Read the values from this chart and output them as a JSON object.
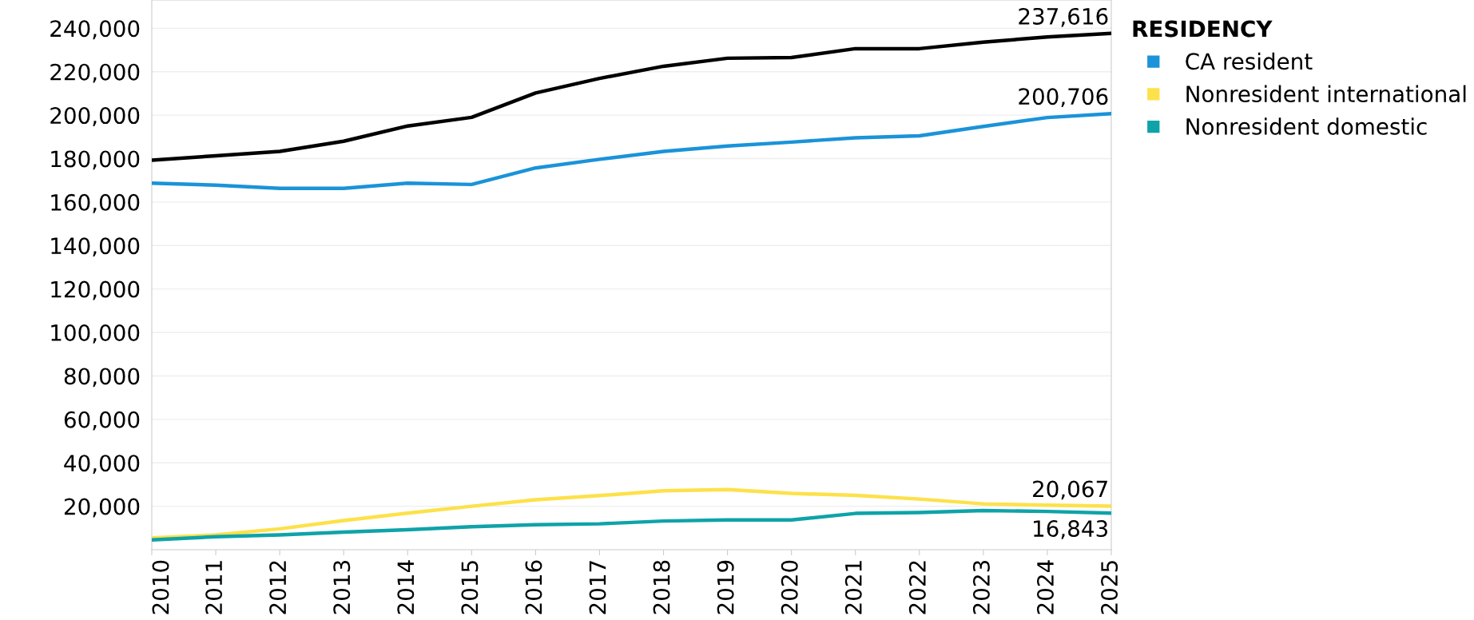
{
  "chart_data": {
    "type": "line",
    "legend_title": "RESIDENCY",
    "legend": "right",
    "grid": "y",
    "categories": [
      "2010",
      "2011",
      "2012",
      "2013",
      "2014",
      "2015",
      "2016",
      "2017",
      "2018",
      "2019",
      "2020",
      "2021",
      "2022",
      "2023",
      "2024",
      "2025"
    ],
    "ylim": [
      0,
      253000
    ],
    "yticks": [
      {
        "value": 20000,
        "label": "20,000"
      },
      {
        "value": 40000,
        "label": "40,000"
      },
      {
        "value": 60000,
        "label": "60,000"
      },
      {
        "value": 80000,
        "label": "80,000"
      },
      {
        "value": 100000,
        "label": "100,000"
      },
      {
        "value": 120000,
        "label": "120,000"
      },
      {
        "value": 140000,
        "label": "140,000"
      },
      {
        "value": 160000,
        "label": "160,000"
      },
      {
        "value": 180000,
        "label": "180,000"
      },
      {
        "value": 200000,
        "label": "200,000"
      },
      {
        "value": 220000,
        "label": "220,000"
      },
      {
        "value": 240000,
        "label": "240,000"
      }
    ],
    "series": [
      {
        "color": "#000000",
        "values": [
          179300,
          181300,
          183300,
          188000,
          195000,
          199000,
          210200,
          216900,
          222500,
          226200,
          226500,
          230600,
          230600,
          233600,
          236000,
          237616
        ],
        "value_labels": [
          null,
          null,
          null,
          null,
          null,
          null,
          null,
          null,
          null,
          null,
          null,
          null,
          null,
          null,
          null,
          "237,616"
        ]
      },
      {
        "name": "CA resident",
        "color": "#1a93d9",
        "values": [
          168700,
          167800,
          166300,
          166300,
          168700,
          168100,
          175700,
          179700,
          183300,
          185800,
          187600,
          189600,
          190500,
          194800,
          198900,
          200706
        ],
        "value_labels": [
          null,
          null,
          null,
          null,
          null,
          null,
          null,
          null,
          null,
          null,
          null,
          null,
          null,
          null,
          null,
          "200,706"
        ]
      },
      {
        "name": "Nonresident international",
        "color": "#fde14a",
        "values": [
          5400,
          6800,
          9600,
          13400,
          16800,
          20000,
          23000,
          24900,
          27100,
          27700,
          25900,
          25000,
          23300,
          21100,
          20500,
          20067
        ],
        "value_labels": [
          null,
          null,
          null,
          null,
          null,
          null,
          null,
          null,
          null,
          null,
          null,
          null,
          null,
          null,
          null,
          "20,067"
        ]
      },
      {
        "name": "Nonresident domestic",
        "color": "#0ea3a8",
        "values": [
          4500,
          6000,
          6800,
          8100,
          9200,
          10600,
          11500,
          11900,
          13200,
          13700,
          13700,
          16700,
          17100,
          18000,
          17600,
          16843
        ],
        "value_labels": [
          null,
          null,
          null,
          null,
          null,
          null,
          null,
          null,
          null,
          null,
          null,
          null,
          null,
          null,
          null,
          "16,843"
        ]
      }
    ]
  }
}
